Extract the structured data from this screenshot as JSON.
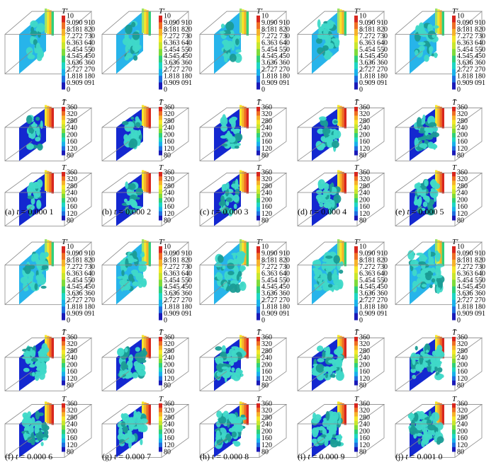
{
  "colors": {
    "fluct": [
      "#1a1ab8",
      "#1f6fe0",
      "#19b2ea",
      "#1fd6c4",
      "#2fd07a",
      "#7fdb3a",
      "#c8e62e",
      "#f4e62a",
      "#f6b22a",
      "#ef6f24",
      "#d8261e"
    ],
    "mean": [
      "#1a1ab8",
      "#1f6fe0",
      "#19b2ea",
      "#1fd6c4",
      "#2fd07a",
      "#7fdb3a",
      "#c8e62e",
      "#f4e62a",
      "#f6b22a",
      "#ef6f24",
      "#d8261e"
    ],
    "iso": "#3fd9c8",
    "iso_dark": "#1a9c95",
    "box": "#8a8a8a",
    "cold_plane": "#1428d0",
    "mid_plane": "#27b4ea"
  },
  "colorbars": {
    "fluct": {
      "title": "T′",
      "ticks": [
        "10",
        "9.090 910",
        "8.181 820",
        "7.272 730",
        "6.363 640",
        "5.454 550",
        "4.545 450",
        "3.636 360",
        "2.727 270",
        "1.818 180",
        "0.909 091",
        "0"
      ]
    },
    "mean": {
      "title": "T̄",
      "ticks": [
        "360",
        "320",
        "280",
        "240",
        "200",
        "160",
        "120",
        "80"
      ]
    },
    "inst": {
      "title": "T",
      "ticks": [
        "360",
        "320",
        "280",
        "240",
        "200",
        "160",
        "120",
        "80"
      ]
    }
  },
  "panels": [
    {
      "label": "(a)",
      "var": "t",
      "eq": " = 0.000 1",
      "level": 0.1
    },
    {
      "label": "(b)",
      "var": "t",
      "eq": " = 0.000 2",
      "level": 0.2
    },
    {
      "label": "(c)",
      "var": "t",
      "eq": " = 0.000 3",
      "level": 0.3
    },
    {
      "label": "(d)",
      "var": "t",
      "eq": " = 0.000 4",
      "level": 0.4
    },
    {
      "label": "(e)",
      "var": "t",
      "eq": " = 0.000 5",
      "level": 0.5
    },
    {
      "label": "(f)",
      "var": "t",
      "eq": " = 0.000 6",
      "level": 0.6
    },
    {
      "label": "(g)",
      "var": "t",
      "eq": " = 0.000 7",
      "level": 0.7
    },
    {
      "label": "(h)",
      "var": "t",
      "eq": " = 0.000 8",
      "level": 0.8
    },
    {
      "label": "(i)",
      "var": "t",
      "eq": " = 0.000 9",
      "level": 0.9
    },
    {
      "label": "(j)",
      "var": "t",
      "eq": " = 0.001 0",
      "level": 1.0
    }
  ]
}
